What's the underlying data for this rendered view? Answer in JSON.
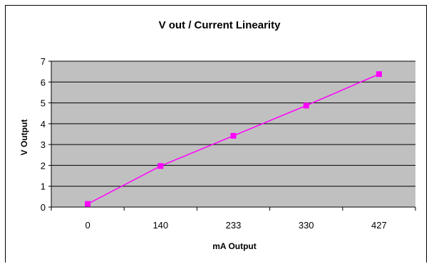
{
  "chart_data": {
    "type": "line",
    "title": "V out / Current Linearity",
    "xlabel": "mA  Output",
    "ylabel": "V Output",
    "categories": [
      "0",
      "140",
      "233",
      "330",
      "427"
    ],
    "series": [
      {
        "values": [
          0.15,
          1.97,
          3.42,
          4.87,
          6.38
        ]
      }
    ],
    "ylim": [
      0,
      7
    ],
    "yticks": [
      0,
      1,
      2,
      3,
      4,
      5,
      6,
      7
    ],
    "grid": "horizontal",
    "legend": "none",
    "colors": {
      "plot_background": "#c0c0c0",
      "series": "#ff00ff",
      "gridline": "#000000"
    }
  }
}
